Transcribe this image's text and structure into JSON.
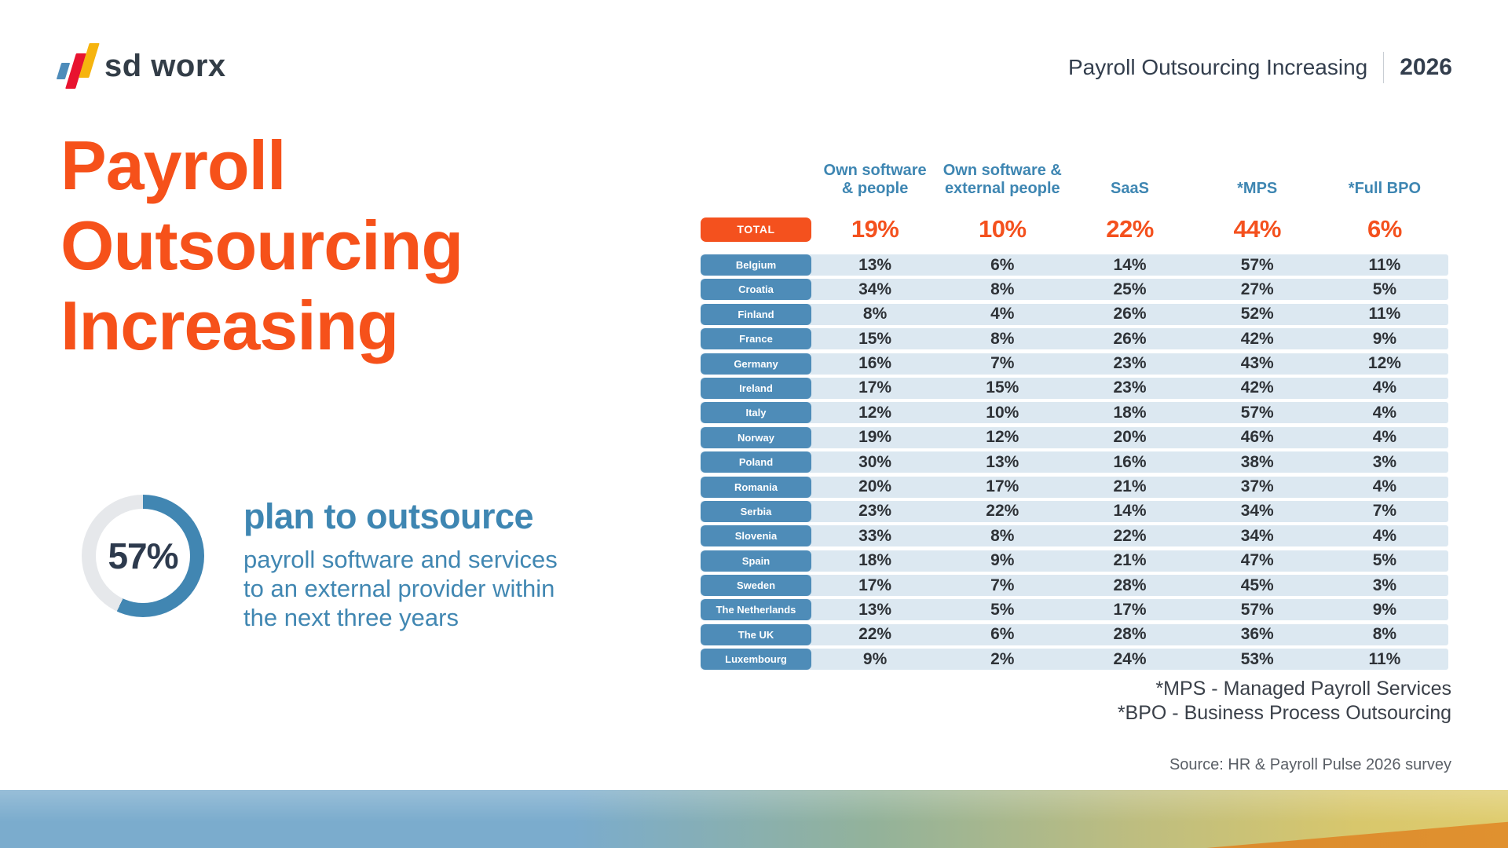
{
  "brand": {
    "logo_text": "sd worx"
  },
  "header": {
    "title": "Payroll Outsourcing Increasing",
    "year": "2026"
  },
  "main_title": {
    "lines": [
      "Payroll",
      "Outsourcing",
      "Increasing"
    ]
  },
  "highlight": {
    "value": 57,
    "percent_label": "57%",
    "headline": "plan to outsource",
    "body_lines": [
      "payroll software and services",
      "to an external provider within",
      "the next three years"
    ]
  },
  "table": {
    "columns": [
      "Own software\n& people",
      "Own software &\nexternal people",
      "SaaS",
      "*MPS",
      "*Full BPO"
    ],
    "total": {
      "label": "TOTAL",
      "values": [
        "19%",
        "10%",
        "22%",
        "44%",
        "6%"
      ]
    },
    "rows": [
      {
        "country": "Belgium",
        "values": [
          "13%",
          "6%",
          "14%",
          "57%",
          "11%"
        ]
      },
      {
        "country": "Croatia",
        "values": [
          "34%",
          "8%",
          "25%",
          "27%",
          "5%"
        ]
      },
      {
        "country": "Finland",
        "values": [
          "8%",
          "4%",
          "26%",
          "52%",
          "11%"
        ]
      },
      {
        "country": "France",
        "values": [
          "15%",
          "8%",
          "26%",
          "42%",
          "9%"
        ]
      },
      {
        "country": "Germany",
        "values": [
          "16%",
          "7%",
          "23%",
          "43%",
          "12%"
        ]
      },
      {
        "country": "Ireland",
        "values": [
          "17%",
          "15%",
          "23%",
          "42%",
          "4%"
        ]
      },
      {
        "country": "Italy",
        "values": [
          "12%",
          "10%",
          "18%",
          "57%",
          "4%"
        ]
      },
      {
        "country": "Norway",
        "values": [
          "19%",
          "12%",
          "20%",
          "46%",
          "4%"
        ]
      },
      {
        "country": "Poland",
        "values": [
          "30%",
          "13%",
          "16%",
          "38%",
          "3%"
        ]
      },
      {
        "country": "Romania",
        "values": [
          "20%",
          "17%",
          "21%",
          "37%",
          "4%"
        ]
      },
      {
        "country": "Serbia",
        "values": [
          "23%",
          "22%",
          "14%",
          "34%",
          "7%"
        ]
      },
      {
        "country": "Slovenia",
        "values": [
          "33%",
          "8%",
          "22%",
          "34%",
          "4%"
        ]
      },
      {
        "country": "Spain",
        "values": [
          "18%",
          "9%",
          "21%",
          "47%",
          "5%"
        ]
      },
      {
        "country": "Sweden",
        "values": [
          "17%",
          "7%",
          "28%",
          "45%",
          "3%"
        ]
      },
      {
        "country": "The Netherlands",
        "values": [
          "13%",
          "5%",
          "17%",
          "57%",
          "9%"
        ]
      },
      {
        "country": "The UK",
        "values": [
          "22%",
          "6%",
          "28%",
          "36%",
          "8%"
        ]
      },
      {
        "country": "Luxembourg",
        "values": [
          "9%",
          "2%",
          "24%",
          "53%",
          "11%"
        ]
      }
    ]
  },
  "footnotes": [
    "*MPS - Managed Payroll Services",
    "*BPO - Business Process Outsourcing"
  ],
  "source": "Source: HR & Payroll Pulse 2026 survey",
  "colors": {
    "accent_orange": "#f4511e",
    "title_orange": "#f6511a",
    "steel_blue": "#3e86b2",
    "pill_blue": "#4e8cb8",
    "row_bg": "#dce8f1",
    "donut_blue": "#4186b2",
    "donut_gray": "#e6e8eb",
    "navy_text": "#333e4d",
    "logo_blue": "#4e8cba",
    "logo_red": "#e8132f",
    "logo_yellow": "#f6b40e"
  },
  "chart_data": [
    {
      "type": "pie",
      "style": "donut",
      "title": "57% plan to outsource payroll software and services to an external provider within the next three years",
      "labels": [
        "plan to outsource",
        "other"
      ],
      "values": [
        57,
        43
      ],
      "colors": [
        "#4186b2",
        "#e6e8eb"
      ],
      "start_angle": "top",
      "direction": "clockwise"
    },
    {
      "type": "table",
      "title": "Payroll Outsourcing Increasing (2026)",
      "columns": [
        "Own software & people",
        "Own software & external people",
        "SaaS",
        "*MPS",
        "*Full BPO"
      ],
      "rows": [
        [
          "TOTAL",
          19,
          10,
          22,
          44,
          6
        ],
        [
          "Belgium",
          13,
          6,
          14,
          57,
          11
        ],
        [
          "Croatia",
          34,
          8,
          25,
          27,
          5
        ],
        [
          "Finland",
          8,
          4,
          26,
          52,
          11
        ],
        [
          "France",
          15,
          8,
          26,
          42,
          9
        ],
        [
          "Germany",
          16,
          7,
          23,
          43,
          12
        ],
        [
          "Ireland",
          17,
          15,
          23,
          42,
          4
        ],
        [
          "Italy",
          12,
          10,
          18,
          57,
          4
        ],
        [
          "Norway",
          19,
          12,
          20,
          46,
          4
        ],
        [
          "Poland",
          30,
          13,
          16,
          38,
          3
        ],
        [
          "Romania",
          20,
          17,
          21,
          37,
          4
        ],
        [
          "Serbia",
          23,
          22,
          14,
          34,
          7
        ],
        [
          "Slovenia",
          33,
          8,
          22,
          34,
          4
        ],
        [
          "Spain",
          18,
          9,
          21,
          47,
          5
        ],
        [
          "Sweden",
          17,
          7,
          28,
          45,
          3
        ],
        [
          "The Netherlands",
          13,
          5,
          17,
          57,
          9
        ],
        [
          "The UK",
          22,
          6,
          28,
          36,
          8
        ],
        [
          "Luxembourg",
          9,
          2,
          24,
          53,
          11
        ]
      ],
      "unit": "%"
    }
  ]
}
